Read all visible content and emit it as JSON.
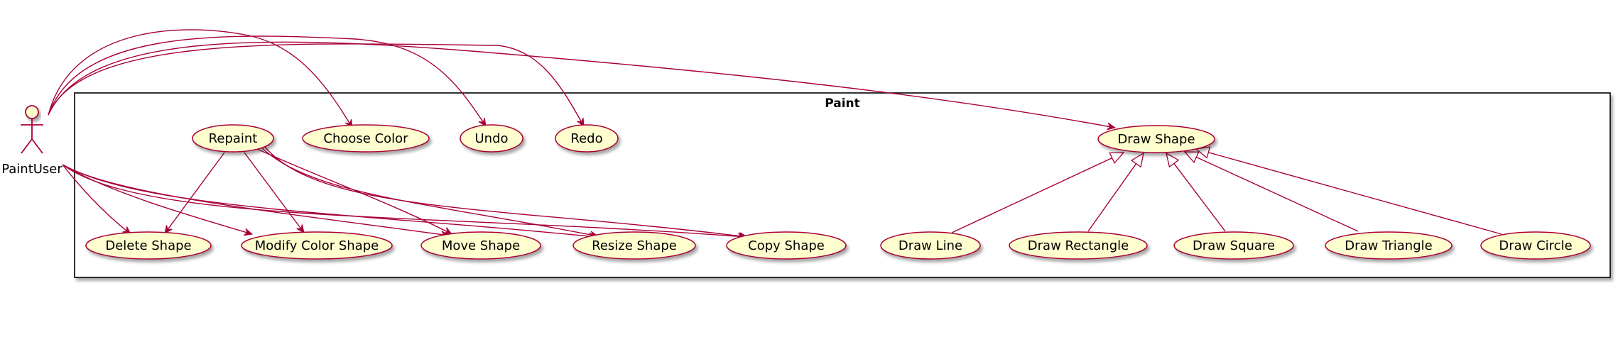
{
  "system": {
    "title": "Paint"
  },
  "actor": {
    "name": "PaintUser"
  },
  "use_cases": {
    "repaint": "Repaint",
    "choose_color": "Choose Color",
    "undo": "Undo",
    "redo": "Redo",
    "draw_shape": "Draw Shape",
    "delete_shape": "Delete Shape",
    "modify_color_shape": "Modify Color Shape",
    "move_shape": "Move Shape",
    "resize_shape": "Resize Shape",
    "copy_shape": "Copy Shape",
    "draw_line": "Draw Line",
    "draw_rectangle": "Draw Rectangle",
    "draw_square": "Draw Square",
    "draw_triangle": "Draw Triangle",
    "draw_circle": "Draw Circle"
  },
  "associations": [
    [
      "actor",
      "choose_color"
    ],
    [
      "actor",
      "undo"
    ],
    [
      "actor",
      "redo"
    ],
    [
      "actor",
      "draw_shape"
    ],
    [
      "actor",
      "delete_shape"
    ],
    [
      "actor",
      "modify_color_shape"
    ],
    [
      "actor",
      "move_shape"
    ],
    [
      "actor",
      "resize_shape"
    ],
    [
      "actor",
      "copy_shape"
    ],
    [
      "repaint",
      "delete_shape"
    ],
    [
      "repaint",
      "modify_color_shape"
    ],
    [
      "repaint",
      "move_shape"
    ],
    [
      "repaint",
      "resize_shape"
    ],
    [
      "repaint",
      "copy_shape"
    ]
  ],
  "generalizations": [
    [
      "draw_line",
      "draw_shape"
    ],
    [
      "draw_rectangle",
      "draw_shape"
    ],
    [
      "draw_square",
      "draw_shape"
    ],
    [
      "draw_triangle",
      "draw_shape"
    ],
    [
      "draw_circle",
      "draw_shape"
    ]
  ],
  "colors": {
    "line": "#a80036",
    "usecase_fill": "#fefece",
    "shadow": "#c0c0c0",
    "border": "#000000"
  }
}
